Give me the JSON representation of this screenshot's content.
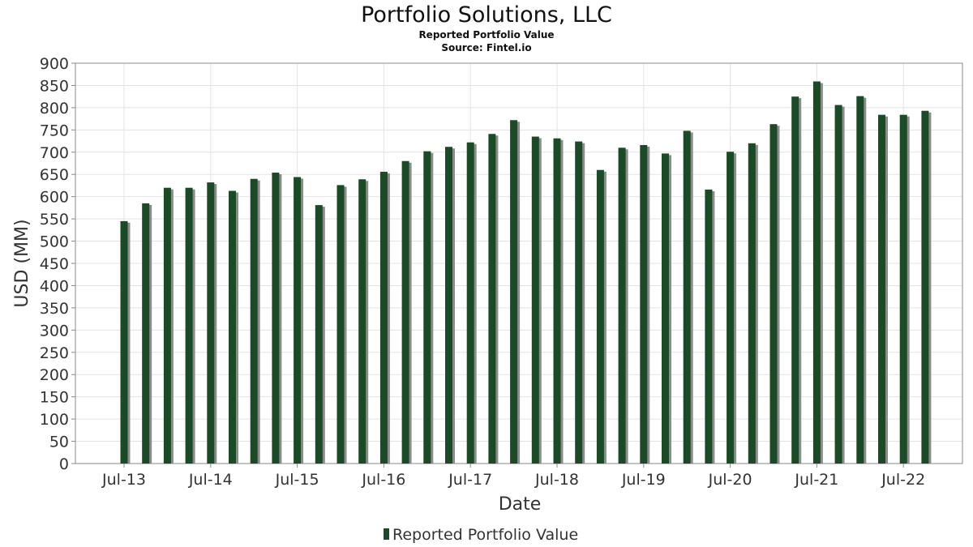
{
  "chart_data": {
    "type": "bar",
    "title": "Portfolio Solutions, LLC",
    "subtitle": "Reported Portfolio Value",
    "source": "Source: Fintel.io",
    "xlabel": "Date",
    "ylabel": "USD (MM)",
    "ylim": [
      0,
      900
    ],
    "ytick_step": 50,
    "grid": true,
    "legend_position": "bottom-center",
    "x_tick_labels": [
      "Jul-13",
      "Jul-14",
      "Jul-15",
      "Jul-16",
      "Jul-17",
      "Jul-18",
      "Jul-19",
      "Jul-20",
      "Jul-21",
      "Jul-22"
    ],
    "x_tick_indices": [
      0,
      4,
      8,
      12,
      16,
      20,
      24,
      28,
      32,
      36
    ],
    "series": [
      {
        "name": "Reported Portfolio Value",
        "color": "#1a4a26",
        "categories": [
          "2013-Q3",
          "2013-Q4",
          "2014-Q1",
          "2014-Q2",
          "2014-Q3",
          "2014-Q4",
          "2015-Q1",
          "2015-Q2",
          "2015-Q3",
          "2015-Q4",
          "2016-Q1",
          "2016-Q2",
          "2016-Q3",
          "2016-Q4",
          "2017-Q1",
          "2017-Q2",
          "2017-Q3",
          "2017-Q4",
          "2018-Q1",
          "2018-Q2",
          "2018-Q3",
          "2018-Q4",
          "2019-Q1",
          "2019-Q2",
          "2019-Q3",
          "2019-Q4",
          "2020-Q1",
          "2020-Q2",
          "2020-Q3",
          "2020-Q4",
          "2021-Q1",
          "2021-Q2",
          "2021-Q3",
          "2021-Q4",
          "2022-Q1",
          "2022-Q2",
          "2022-Q3",
          "2022-Q4"
        ],
        "values": [
          545,
          585,
          620,
          620,
          632,
          613,
          640,
          654,
          644,
          581,
          626,
          639,
          656,
          680,
          702,
          712,
          722,
          741,
          772,
          735,
          731,
          724,
          660,
          710,
          716,
          697,
          748,
          616,
          701,
          720,
          763,
          825,
          859,
          806,
          826,
          784,
          784,
          793
        ]
      }
    ]
  }
}
